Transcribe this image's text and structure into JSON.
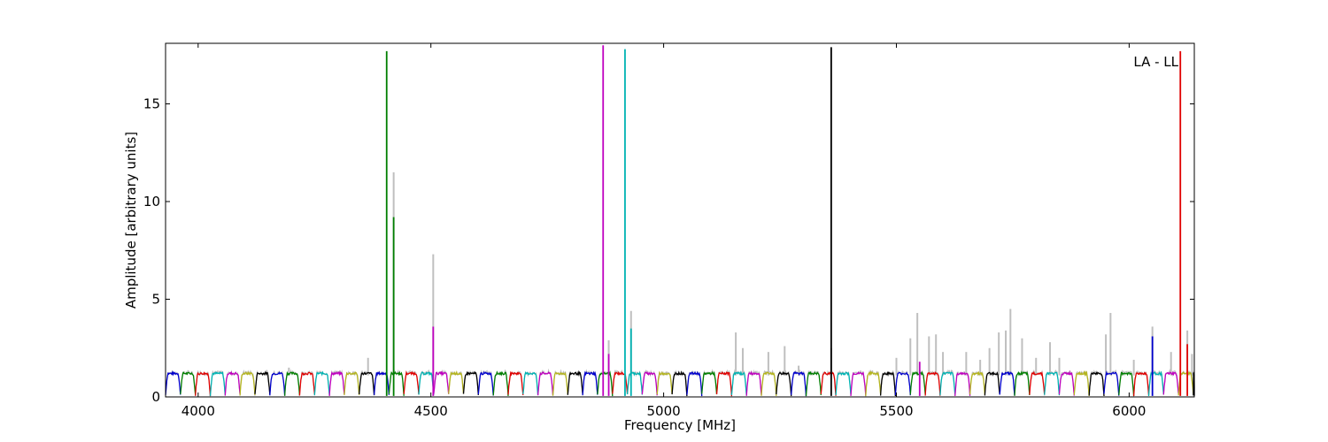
{
  "chart_data": {
    "type": "line",
    "title": "",
    "xlabel": "Frequency [MHz]",
    "ylabel": "Amplitude [arbitrary units]",
    "annotation": "LA - LL",
    "xlim": [
      3930,
      6140
    ],
    "ylim": [
      0,
      18.1
    ],
    "x_ticks": [
      4000,
      4500,
      5000,
      5500,
      6000
    ],
    "y_ticks": [
      0,
      5,
      10,
      15
    ],
    "grid": false,
    "legend": "none",
    "background_trace_color": "#bfbfbf",
    "cycle_colors": [
      "#0000cc",
      "#007f00",
      "#e00000",
      "#00b3b3",
      "#bf00bf",
      "#b5b51f",
      "#000000"
    ],
    "channel_pattern": {
      "start_mhz": 3930,
      "segment_width_mhz": 32,
      "channel_width_mhz": 16,
      "plateau_level": 1.2,
      "dip_level": 0.1
    },
    "series_spikes": [
      {
        "x": 4405,
        "y": 17.7,
        "color": "#007f00"
      },
      {
        "x": 4420,
        "y": 9.2,
        "color": "#007f00"
      },
      {
        "x": 4505,
        "y": 3.6,
        "color": "#bf00bf"
      },
      {
        "x": 4870,
        "y": 18.0,
        "color": "#bf00bf"
      },
      {
        "x": 4882,
        "y": 2.2,
        "color": "#bf00bf"
      },
      {
        "x": 4917,
        "y": 17.8,
        "color": "#00b3b3"
      },
      {
        "x": 4930,
        "y": 3.5,
        "color": "#00b3b3"
      },
      {
        "x": 5360,
        "y": 17.9,
        "color": "#000000"
      },
      {
        "x": 5550,
        "y": 1.8,
        "color": "#bf00bf"
      },
      {
        "x": 6050,
        "y": 3.1,
        "color": "#0000cc"
      },
      {
        "x": 6110,
        "y": 17.7,
        "color": "#e00000"
      },
      {
        "x": 6125,
        "y": 2.7,
        "color": "#e00000"
      }
    ],
    "background_spikes": [
      {
        "x": 4195,
        "y": 1.5
      },
      {
        "x": 4365,
        "y": 2.0
      },
      {
        "x": 4420,
        "y": 11.5
      },
      {
        "x": 4505,
        "y": 7.3
      },
      {
        "x": 4882,
        "y": 2.9
      },
      {
        "x": 4930,
        "y": 4.4
      },
      {
        "x": 5155,
        "y": 3.3
      },
      {
        "x": 5170,
        "y": 2.5
      },
      {
        "x": 5225,
        "y": 2.3
      },
      {
        "x": 5260,
        "y": 2.6
      },
      {
        "x": 5290,
        "y": 1.6
      },
      {
        "x": 5360,
        "y": 2.5
      },
      {
        "x": 5500,
        "y": 2.0
      },
      {
        "x": 5530,
        "y": 3.0
      },
      {
        "x": 5545,
        "y": 4.3
      },
      {
        "x": 5570,
        "y": 3.1
      },
      {
        "x": 5585,
        "y": 3.2
      },
      {
        "x": 5600,
        "y": 2.3
      },
      {
        "x": 5650,
        "y": 2.3
      },
      {
        "x": 5680,
        "y": 1.9
      },
      {
        "x": 5700,
        "y": 2.5
      },
      {
        "x": 5720,
        "y": 3.3
      },
      {
        "x": 5735,
        "y": 3.4
      },
      {
        "x": 5745,
        "y": 4.5
      },
      {
        "x": 5770,
        "y": 3.0
      },
      {
        "x": 5800,
        "y": 2.0
      },
      {
        "x": 5830,
        "y": 2.8
      },
      {
        "x": 5850,
        "y": 2.0
      },
      {
        "x": 5950,
        "y": 3.2
      },
      {
        "x": 5960,
        "y": 4.3
      },
      {
        "x": 6010,
        "y": 1.9
      },
      {
        "x": 6050,
        "y": 3.6
      },
      {
        "x": 6090,
        "y": 2.3
      },
      {
        "x": 6125,
        "y": 3.4
      },
      {
        "x": 6135,
        "y": 2.2
      }
    ]
  }
}
